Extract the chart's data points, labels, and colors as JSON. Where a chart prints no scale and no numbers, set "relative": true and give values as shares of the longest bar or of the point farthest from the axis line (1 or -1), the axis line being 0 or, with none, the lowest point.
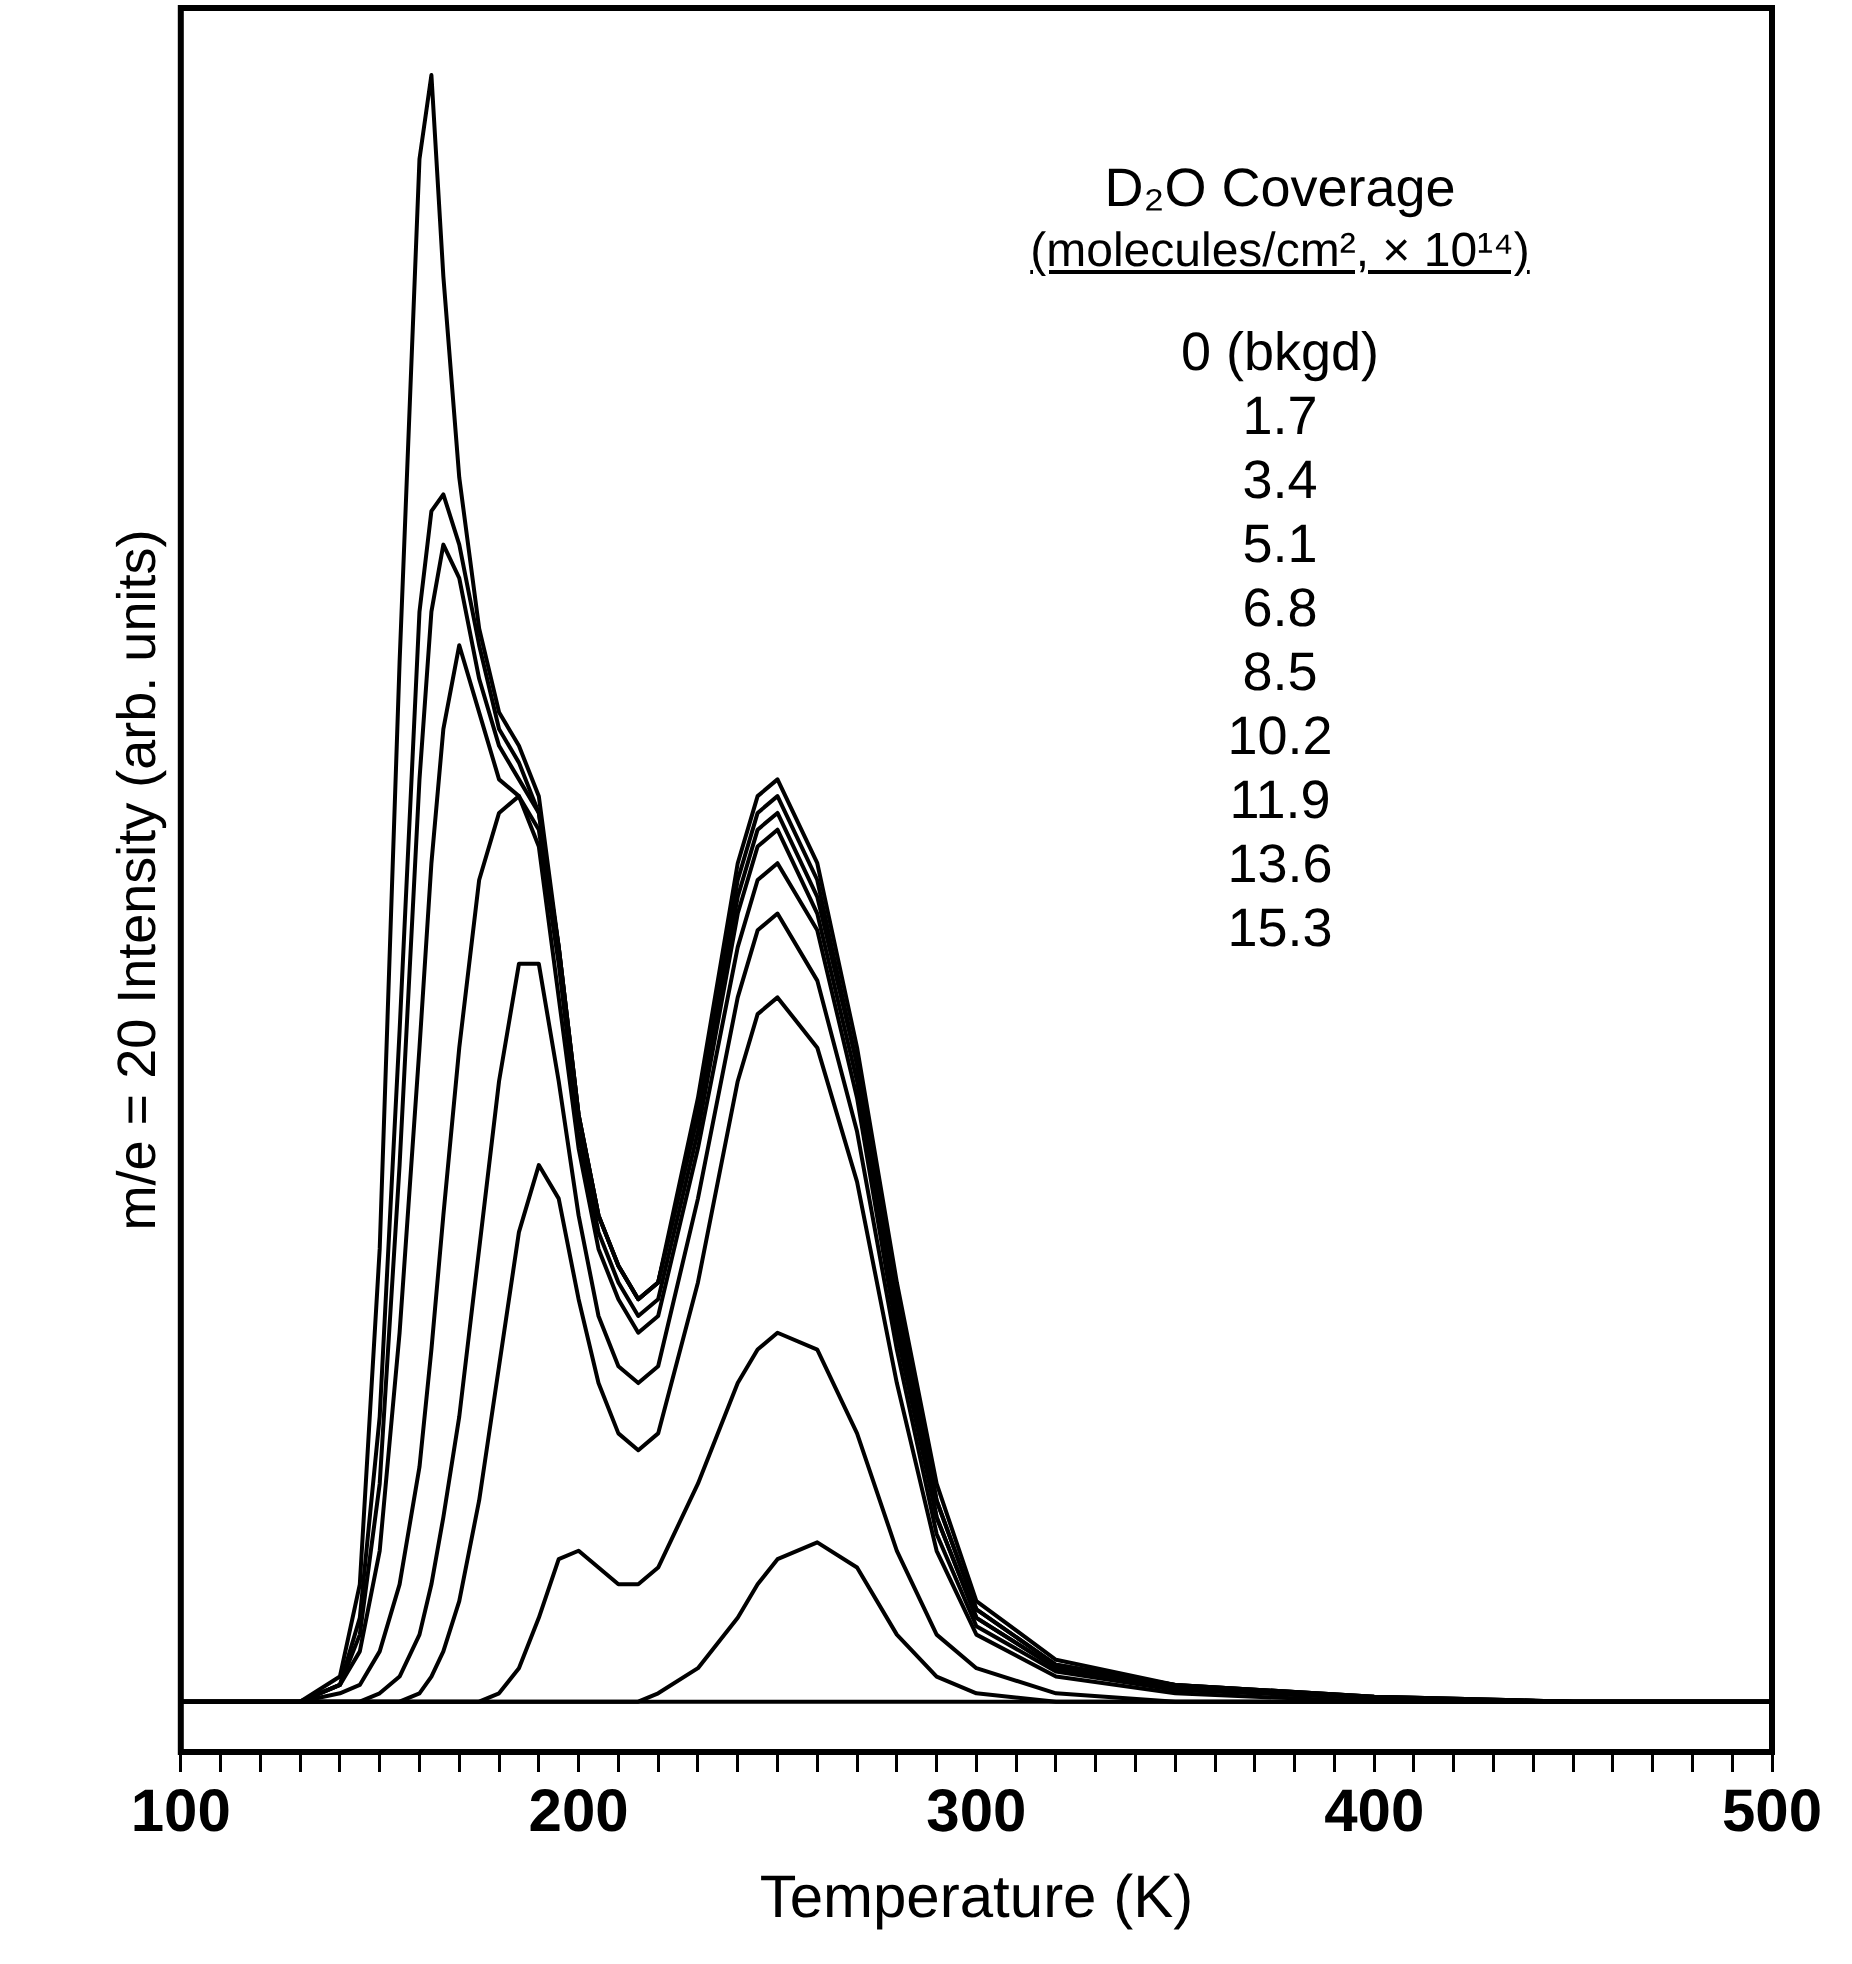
{
  "chart_data": {
    "type": "line",
    "relative": true,
    "xlabel": "Temperature (K)",
    "ylabel": "m/e = 20 Intensity (arb. units)",
    "annotations": [
      "D₂O Coverage",
      "(molecules/cm², × 10¹⁴)",
      "0 (bkgd)",
      "1.7",
      "3.4",
      "5.1",
      "6.8",
      "8.5",
      "10.2",
      "11.9",
      "13.6",
      "15.3"
    ],
    "grid": false,
    "marker": "none",
    "line_style": "solid",
    "tick_labels": "x",
    "xlim": [
      100,
      500
    ],
    "xticks": [
      100,
      {
        "value": 110,
        "label": null
      },
      {
        "value": 120,
        "label": null
      },
      {
        "value": 130,
        "label": null
      },
      {
        "value": 140,
        "label": null
      },
      {
        "value": 150,
        "label": null
      },
      {
        "value": 160,
        "label": null
      },
      {
        "value": 170,
        "label": null
      },
      {
        "value": 180,
        "label": null
      },
      {
        "value": 190,
        "label": null
      },
      200,
      {
        "value": 210,
        "label": null
      },
      {
        "value": 220,
        "label": null
      },
      {
        "value": 230,
        "label": null
      },
      {
        "value": 240,
        "label": null
      },
      {
        "value": 250,
        "label": null
      },
      {
        "value": 260,
        "label": null
      },
      {
        "value": 270,
        "label": null
      },
      {
        "value": 280,
        "label": null
      },
      {
        "value": 290,
        "label": null
      },
      300,
      {
        "value": 310,
        "label": null
      },
      {
        "value": 320,
        "label": null
      },
      {
        "value": 330,
        "label": null
      },
      {
        "value": 340,
        "label": null
      },
      {
        "value": 350,
        "label": null
      },
      {
        "value": 360,
        "label": null
      },
      {
        "value": 370,
        "label": null
      },
      {
        "value": 380,
        "label": null
      },
      {
        "value": 390,
        "label": null
      },
      400,
      {
        "value": 410,
        "label": null
      },
      {
        "value": 420,
        "label": null
      },
      {
        "value": 430,
        "label": null
      },
      {
        "value": 440,
        "label": null
      },
      {
        "value": 450,
        "label": null
      },
      {
        "value": 460,
        "label": null
      },
      {
        "value": 470,
        "label": null
      },
      {
        "value": 480,
        "label": null
      },
      {
        "value": 490,
        "label": null
      },
      500
    ],
    "x": [
      100,
      130,
      140,
      145,
      150,
      155,
      160,
      163,
      166,
      170,
      175,
      180,
      185,
      190,
      195,
      200,
      205,
      210,
      215,
      220,
      230,
      240,
      245,
      250,
      260,
      270,
      280,
      290,
      300,
      320,
      350,
      400,
      450,
      500
    ],
    "series": [
      {
        "color": "#000000",
        "values": [
          0.03,
          0.03,
          0.03,
          0.03,
          0.03,
          0.03,
          0.03,
          0.03,
          0.03,
          0.03,
          0.03,
          0.03,
          0.03,
          0.03,
          0.03,
          0.03,
          0.03,
          0.03,
          0.03,
          0.03,
          0.03,
          0.03,
          0.03,
          0.03,
          0.03,
          0.03,
          0.03,
          0.03,
          0.03,
          0.03,
          0.03,
          0.03,
          0.03,
          0.03
        ]
      },
      {
        "color": "#000000",
        "values": [
          0.03,
          0.03,
          0.03,
          0.03,
          0.03,
          0.03,
          0.03,
          0.03,
          0.03,
          0.03,
          0.03,
          0.03,
          0.03,
          0.03,
          0.03,
          0.03,
          0.03,
          0.03,
          0.03,
          0.035,
          0.05,
          0.08,
          0.1,
          0.115,
          0.125,
          0.11,
          0.07,
          0.045,
          0.035,
          0.03,
          0.03,
          0.03,
          0.03,
          0.03
        ]
      },
      {
        "color": "#000000",
        "values": [
          0.03,
          0.03,
          0.03,
          0.03,
          0.03,
          0.03,
          0.03,
          0.03,
          0.03,
          0.03,
          0.03,
          0.035,
          0.05,
          0.08,
          0.115,
          0.12,
          0.11,
          0.1,
          0.1,
          0.11,
          0.16,
          0.22,
          0.24,
          0.25,
          0.24,
          0.19,
          0.12,
          0.07,
          0.05,
          0.035,
          0.03,
          0.03,
          0.03,
          0.03
        ]
      },
      {
        "color": "#000000",
        "values": [
          0.03,
          0.03,
          0.03,
          0.03,
          0.03,
          0.03,
          0.035,
          0.045,
          0.06,
          0.09,
          0.15,
          0.23,
          0.31,
          0.35,
          0.33,
          0.27,
          0.22,
          0.19,
          0.18,
          0.19,
          0.28,
          0.4,
          0.44,
          0.45,
          0.42,
          0.34,
          0.22,
          0.12,
          0.07,
          0.045,
          0.035,
          0.03,
          0.03,
          0.03
        ]
      },
      {
        "color": "#000000",
        "values": [
          0.03,
          0.03,
          0.03,
          0.03,
          0.035,
          0.045,
          0.07,
          0.1,
          0.14,
          0.2,
          0.3,
          0.4,
          0.47,
          0.47,
          0.4,
          0.32,
          0.26,
          0.23,
          0.22,
          0.23,
          0.33,
          0.45,
          0.49,
          0.5,
          0.46,
          0.37,
          0.24,
          0.13,
          0.075,
          0.048,
          0.037,
          0.032,
          0.03,
          0.03
        ]
      },
      {
        "color": "#000000",
        "values": [
          0.03,
          0.03,
          0.035,
          0.04,
          0.06,
          0.1,
          0.17,
          0.24,
          0.32,
          0.42,
          0.52,
          0.56,
          0.57,
          0.54,
          0.45,
          0.36,
          0.3,
          0.27,
          0.25,
          0.26,
          0.36,
          0.48,
          0.52,
          0.53,
          0.49,
          0.39,
          0.25,
          0.14,
          0.08,
          0.05,
          0.038,
          0.032,
          0.03,
          0.03
        ]
      },
      {
        "color": "#000000",
        "values": [
          0.03,
          0.03,
          0.04,
          0.06,
          0.12,
          0.25,
          0.42,
          0.53,
          0.61,
          0.66,
          0.62,
          0.58,
          0.57,
          0.55,
          0.47,
          0.37,
          0.31,
          0.28,
          0.26,
          0.27,
          0.37,
          0.5,
          0.54,
          0.55,
          0.5,
          0.4,
          0.26,
          0.14,
          0.08,
          0.05,
          0.038,
          0.032,
          0.03,
          0.03
        ]
      },
      {
        "color": "#000000",
        "values": [
          0.03,
          0.03,
          0.04,
          0.07,
          0.16,
          0.35,
          0.58,
          0.68,
          0.72,
          0.7,
          0.64,
          0.6,
          0.58,
          0.56,
          0.48,
          0.38,
          0.32,
          0.29,
          0.27,
          0.28,
          0.38,
          0.51,
          0.55,
          0.56,
          0.51,
          0.41,
          0.27,
          0.15,
          0.085,
          0.052,
          0.04,
          0.033,
          0.03,
          0.03
        ]
      },
      {
        "color": "#000000",
        "values": [
          0.03,
          0.03,
          0.04,
          0.08,
          0.2,
          0.43,
          0.68,
          0.74,
          0.75,
          0.72,
          0.66,
          0.61,
          0.59,
          0.56,
          0.48,
          0.38,
          0.32,
          0.29,
          0.27,
          0.28,
          0.38,
          0.52,
          0.56,
          0.57,
          0.52,
          0.41,
          0.27,
          0.15,
          0.085,
          0.052,
          0.04,
          0.033,
          0.03,
          0.03
        ]
      },
      {
        "color": "#000000",
        "values": [
          0.03,
          0.03,
          0.045,
          0.1,
          0.3,
          0.65,
          0.95,
          1.0,
          0.88,
          0.76,
          0.67,
          0.62,
          0.6,
          0.57,
          0.48,
          0.38,
          0.32,
          0.29,
          0.27,
          0.28,
          0.39,
          0.53,
          0.57,
          0.58,
          0.53,
          0.42,
          0.28,
          0.16,
          0.09,
          0.055,
          0.04,
          0.033,
          0.03,
          0.03
        ]
      }
    ]
  }
}
